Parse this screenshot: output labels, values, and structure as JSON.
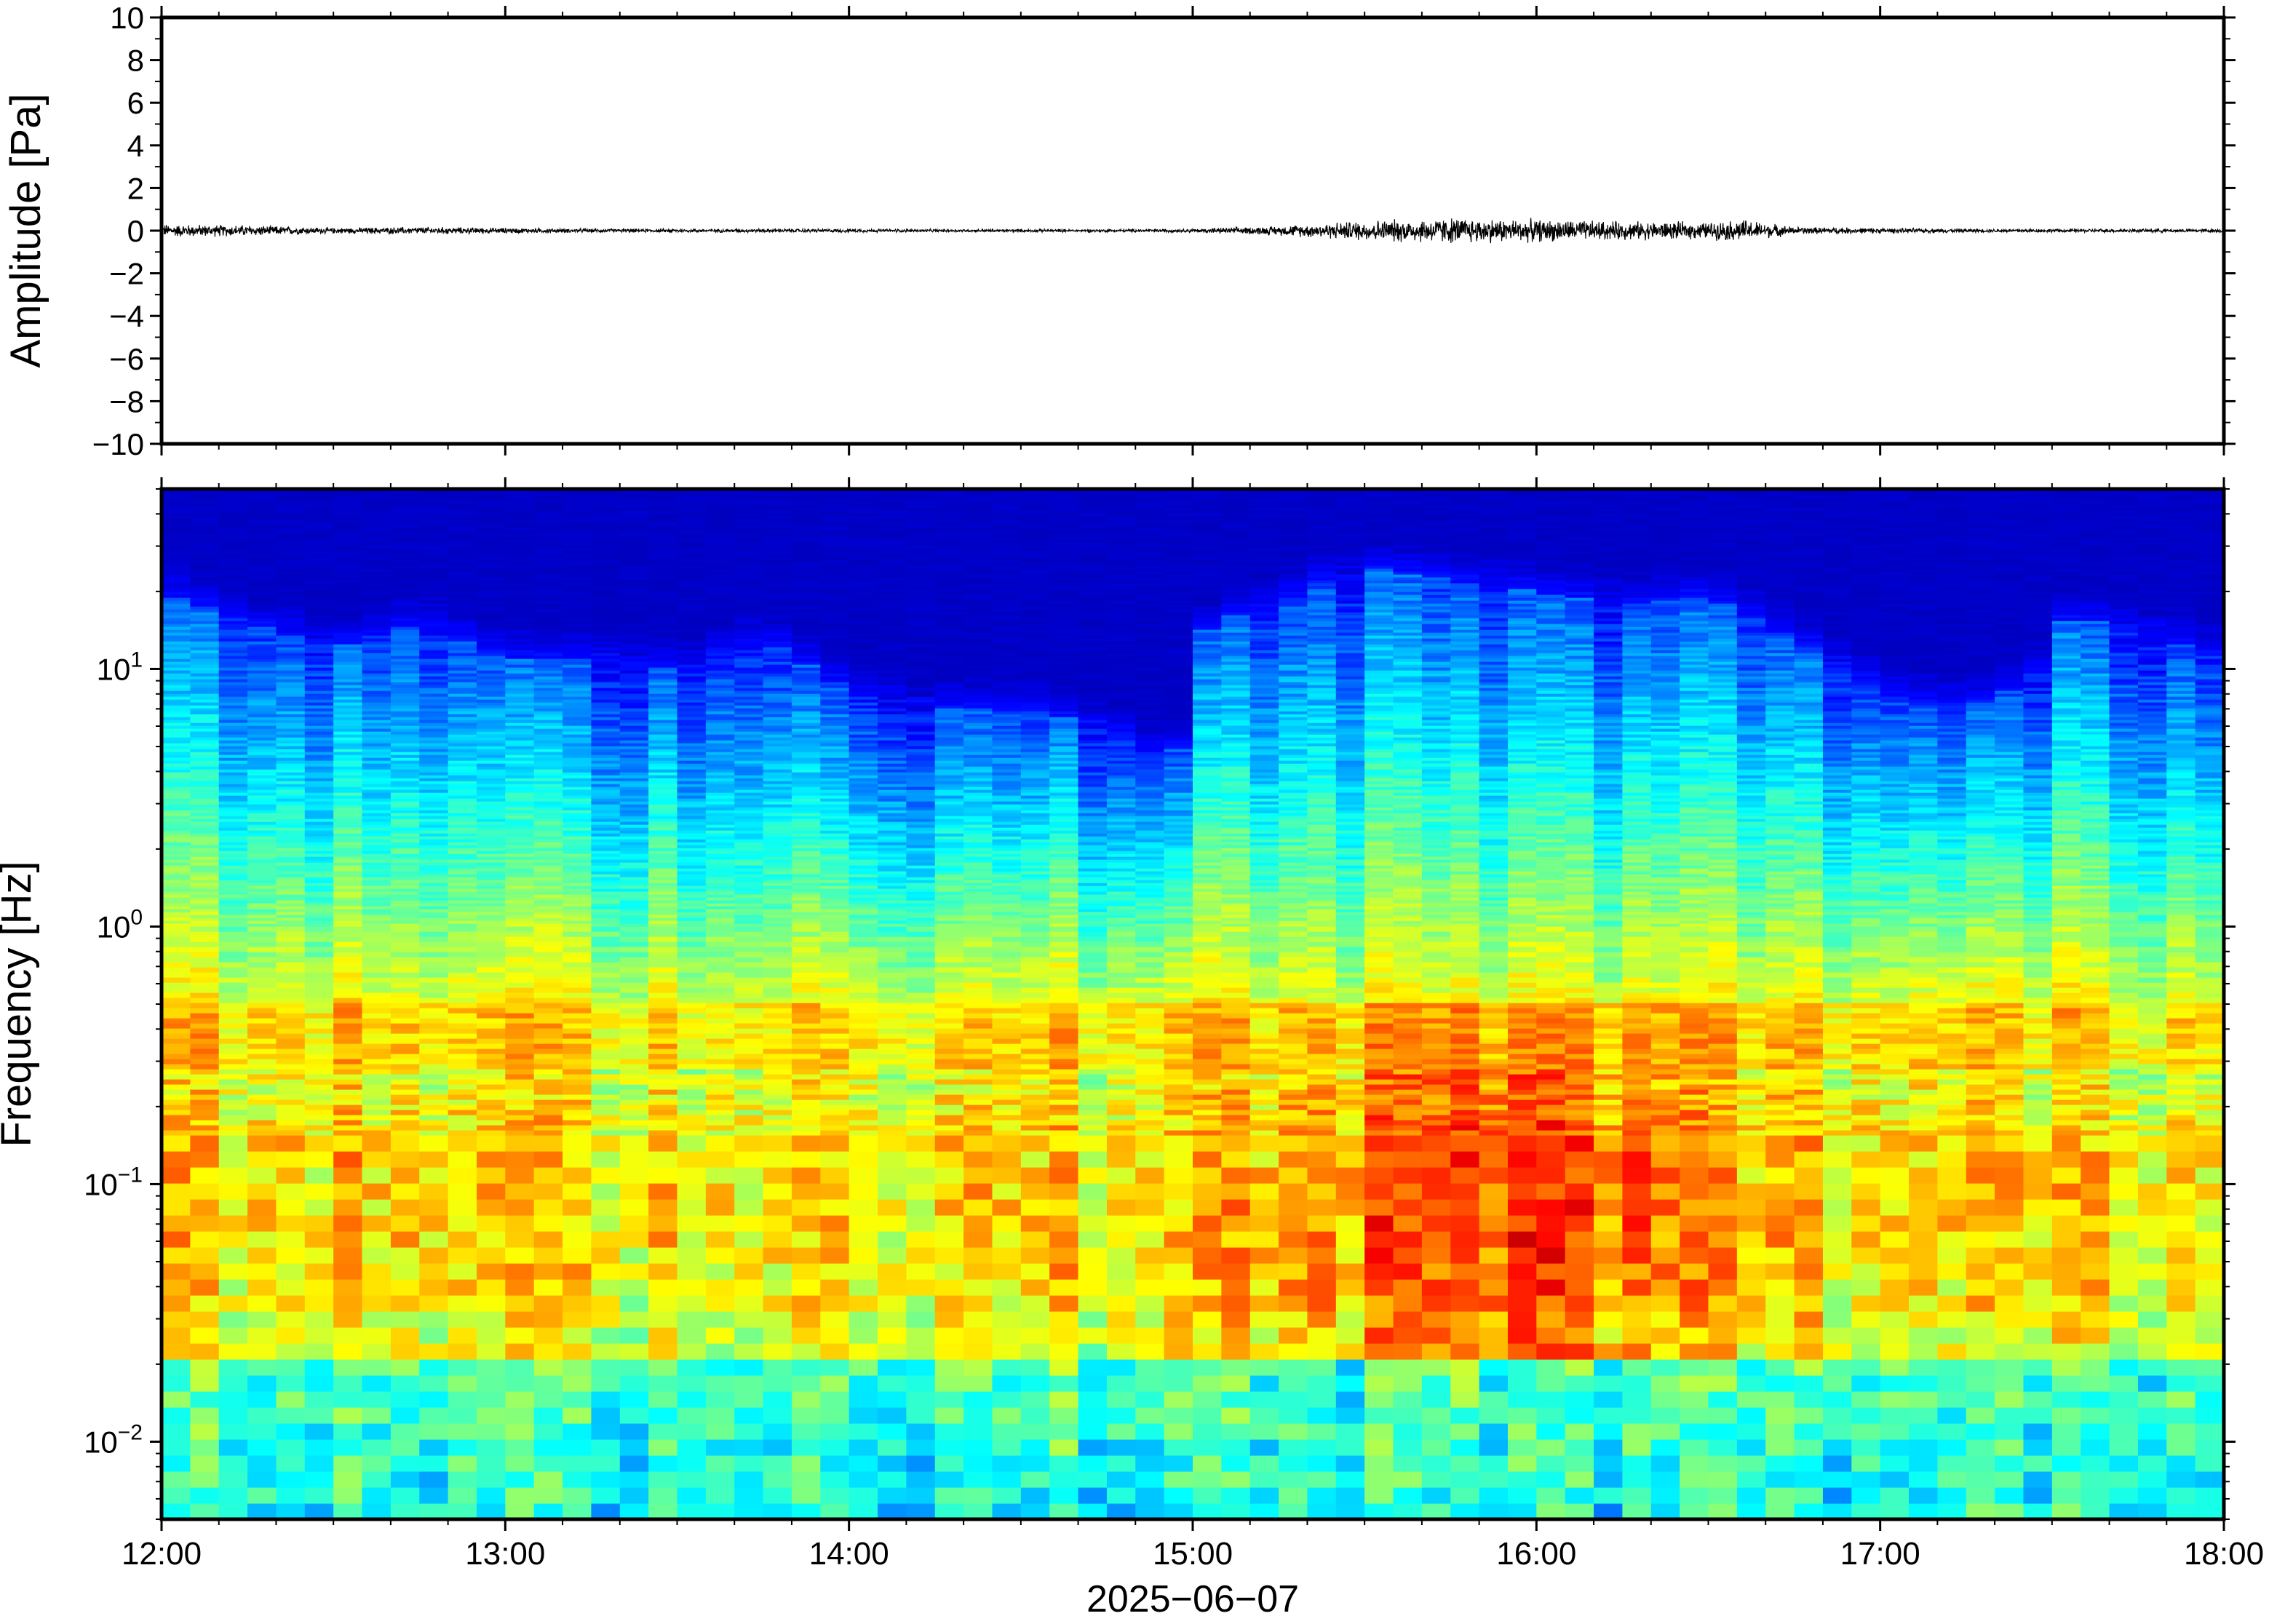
{
  "chart_data": [
    {
      "type": "line",
      "panel": "waveform",
      "ylabel": "Amplitude [Pa]",
      "ylim": [
        -10,
        10
      ],
      "yticks": [
        10,
        8,
        6,
        4,
        2,
        0,
        -2,
        -4,
        -6,
        -8,
        -10
      ],
      "ytick_labels": [
        "10",
        "8",
        "6",
        "4",
        "2",
        "0",
        "−2",
        "−4",
        "−6",
        "−8",
        "−10"
      ],
      "xlim": [
        "12:00",
        "18:00"
      ],
      "grid": false,
      "line_color": "#000000",
      "series": [
        {
          "x_hours": [
            12.0,
            12.25,
            12.5,
            12.75,
            13.0,
            13.25,
            13.5,
            13.75,
            14.0,
            14.25,
            14.5,
            14.75,
            15.0,
            15.25,
            15.5,
            15.75,
            16.0,
            16.25,
            16.5,
            16.6,
            16.75,
            17.0,
            17.25,
            17.5,
            17.75,
            18.0
          ],
          "envelope": [
            0.35,
            0.3,
            0.15,
            0.2,
            0.15,
            0.1,
            0.1,
            0.1,
            0.1,
            0.08,
            0.08,
            0.08,
            0.1,
            0.25,
            0.55,
            0.7,
            0.6,
            0.5,
            0.45,
            0.6,
            0.2,
            0.15,
            0.1,
            0.1,
            0.1,
            0.1
          ]
        }
      ]
    },
    {
      "type": "heatmap",
      "panel": "spectrogram",
      "ylabel": "Frequency [Hz]",
      "xlabel": "2025−06−07",
      "yscale": "log",
      "ylim": [
        0.005,
        50
      ],
      "yticks": [
        10,
        1,
        0.1,
        0.01
      ],
      "ytick_labels": [
        {
          "base": "10",
          "exp": "1"
        },
        {
          "base": "10",
          "exp": "0"
        },
        {
          "base": "10",
          "exp": "−1"
        },
        {
          "base": "10",
          "exp": "−2"
        }
      ],
      "xticks": [
        "12:00",
        "13:00",
        "14:00",
        "15:00",
        "16:00",
        "17:00",
        "18:00"
      ],
      "colormap": "jet",
      "grid": false,
      "cutoff_frequency_hz_by_hour": {
        "x_hours": [
          12.0,
          12.25,
          12.5,
          12.75,
          13.0,
          13.25,
          13.5,
          13.75,
          14.0,
          14.25,
          14.5,
          14.75,
          14.95,
          15.05,
          15.25,
          15.5,
          15.75,
          16.0,
          16.25,
          16.5,
          16.75,
          17.0,
          17.25,
          17.45,
          17.55,
          17.75,
          18.0
        ],
        "values": [
          20,
          15,
          12,
          15,
          11,
          11,
          10,
          13,
          8,
          7,
          7,
          6,
          4,
          15,
          18,
          25,
          22,
          20,
          18,
          19,
          13,
          8,
          7,
          9,
          16,
          14,
          11
        ]
      },
      "energy_band_hz": [
        0.03,
        0.3
      ]
    }
  ]
}
